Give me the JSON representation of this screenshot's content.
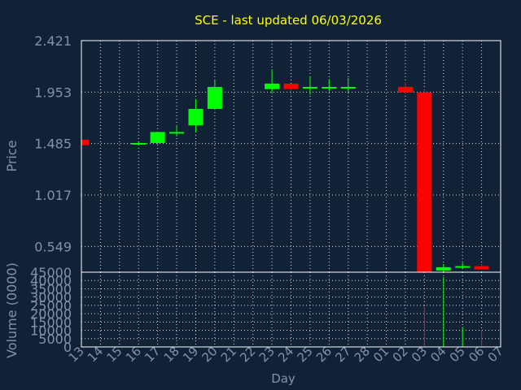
{
  "chart_data": {
    "type": "candlestick",
    "title": "SCE - last updated 06/03/2026",
    "ylabel_price": "Price",
    "ylabel_volume": "Volume (0000)",
    "xlabel": "Day",
    "price_ylim": [
      0.315,
      2.421
    ],
    "price_ticks": [
      "2.421",
      "1.953",
      "1.485",
      "1.017",
      "0.549"
    ],
    "volume_ylim": [
      0,
      45000
    ],
    "volume_ticks": [
      "45000",
      "40000",
      "35000",
      "30000",
      "25000",
      "20000",
      "15000",
      "10000",
      "5000",
      "0"
    ],
    "x_labels": [
      "13",
      "14",
      "15",
      "16",
      "17",
      "18",
      "19",
      "20",
      "21",
      "22",
      "23",
      "24",
      "25",
      "26",
      "27",
      "28",
      "01",
      "02",
      "03",
      "04",
      "05",
      "06",
      "07"
    ],
    "colors": {
      "up": "#00ff00",
      "down": "#ff0000",
      "background": "#112236",
      "title": "#ffff00",
      "axis_text": "#7f93ad"
    },
    "candles": [
      {
        "day": "13",
        "open": 1.52,
        "high": 1.52,
        "low": 1.47,
        "close": 1.47,
        "volume": 0
      },
      {
        "day": "16",
        "open": 1.48,
        "high": 1.5,
        "low": 1.47,
        "close": 1.49,
        "volume": 0
      },
      {
        "day": "17",
        "open": 1.49,
        "high": 1.59,
        "low": 1.48,
        "close": 1.59,
        "volume": 0
      },
      {
        "day": "18",
        "open": 1.58,
        "high": 1.65,
        "low": 1.55,
        "close": 1.59,
        "volume": 0
      },
      {
        "day": "19",
        "open": 1.65,
        "high": 1.89,
        "low": 1.59,
        "close": 1.8,
        "volume": 0
      },
      {
        "day": "20",
        "open": 1.8,
        "high": 2.06,
        "low": 1.8,
        "close": 2.0,
        "volume": 0
      },
      {
        "day": "23",
        "open": 1.98,
        "high": 2.16,
        "low": 1.95,
        "close": 2.03,
        "volume": 0
      },
      {
        "day": "24",
        "open": 2.03,
        "high": 2.03,
        "low": 1.93,
        "close": 1.98,
        "volume": 0
      },
      {
        "day": "25",
        "open": 1.99,
        "high": 2.09,
        "low": 1.93,
        "close": 2.0,
        "volume": 0
      },
      {
        "day": "26",
        "open": 1.99,
        "high": 2.07,
        "low": 1.96,
        "close": 2.0,
        "volume": 0
      },
      {
        "day": "27",
        "open": 1.99,
        "high": 2.08,
        "low": 1.94,
        "close": 2.0,
        "volume": 0
      },
      {
        "day": "02",
        "open": 2.0,
        "high": 2.04,
        "low": 1.94,
        "close": 1.95,
        "volume": 0
      },
      {
        "day": "03",
        "open": 1.95,
        "high": 1.98,
        "low": 0.315,
        "close": 0.315,
        "volume": 25000
      },
      {
        "day": "04",
        "open": 0.33,
        "high": 0.39,
        "low": 0.3,
        "close": 0.36,
        "volume": 42000
      },
      {
        "day": "05",
        "open": 0.36,
        "high": 0.4,
        "low": 0.35,
        "close": 0.37,
        "volume": 12000
      },
      {
        "day": "06",
        "open": 0.37,
        "high": 0.39,
        "low": 0.34,
        "close": 0.34,
        "volume": 10000
      }
    ]
  }
}
